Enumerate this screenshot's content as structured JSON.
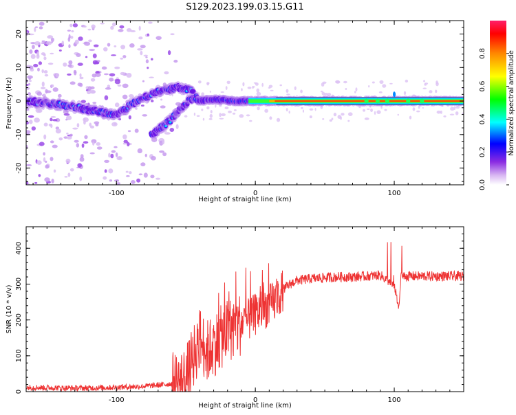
{
  "title": "S129.2023.199.03.15.G11",
  "chart_data": [
    {
      "type": "heatmap",
      "xlabel": "Height of straight line (km)",
      "ylabel": "Frequency (Hz)",
      "xlim": [
        -165,
        150
      ],
      "ylim": [
        -25,
        24
      ],
      "xticks": [
        -100,
        0,
        100
      ],
      "yticks": [
        -20,
        -10,
        0,
        10,
        20
      ],
      "colorbar": {
        "label": "Normalized spectral amplitude",
        "range": [
          0,
          1
        ],
        "ticks": [
          0.0,
          0.2,
          0.4,
          0.6,
          0.8
        ],
        "colormap": [
          "#ffffff",
          "#d7b4f2",
          "#8a2be2",
          "#0000ff",
          "#00ffff",
          "#00ff00",
          "#ffff00",
          "#ff0000"
        ]
      },
      "features": [
        {
          "name": "",
          "x": [
            -165,
            -140,
            -115,
            -100,
            -85,
            -70,
            -55,
            -45
          ],
          "y": [
            0,
            -1,
            -3,
            -4,
            0,
            3,
            4,
            3
          ]
        },
        {
          "name": "",
          "x": [
            -75,
            -68,
            -62,
            -55,
            -48,
            -42
          ],
          "y": [
            -10,
            -8,
            -6,
            -3,
            0,
            1
          ]
        },
        {
          "name": "",
          "x": [
            -42,
            -30,
            -15,
            0,
            15,
            50,
            100,
            150
          ],
          "y": [
            0,
            0.5,
            0,
            0,
            0,
            0,
            0,
            0
          ]
        }
      ]
    },
    {
      "type": "line",
      "xlabel": "Height of straight line (km)",
      "ylabel": "SNR (10 * v/v)",
      "xlim": [
        -165,
        150
      ],
      "ylim": [
        0,
        460
      ],
      "xticks": [
        -100,
        0,
        100
      ],
      "yticks": [
        0,
        100,
        200,
        300,
        400
      ],
      "color": "#ee3333",
      "series": [
        {
          "name": "",
          "x": [
            -165,
            -150,
            -135,
            -120,
            -100,
            -80,
            -65,
            -55,
            -50,
            -45,
            -40,
            -35,
            -30,
            -25,
            -20,
            -15,
            -10,
            -5,
            0,
            5,
            10,
            15,
            20,
            25,
            30,
            40,
            50,
            60,
            70,
            80,
            90,
            95,
            100,
            103,
            105,
            110,
            120,
            130,
            140,
            150
          ],
          "y": [
            12,
            11,
            10,
            10,
            12,
            15,
            20,
            25,
            40,
            90,
            150,
            110,
            130,
            150,
            170,
            180,
            190,
            200,
            215,
            230,
            240,
            255,
            285,
            300,
            310,
            315,
            318,
            320,
            320,
            322,
            325,
            310,
            300,
            230,
            320,
            322,
            322,
            322,
            322,
            322
          ]
        }
      ]
    }
  ]
}
